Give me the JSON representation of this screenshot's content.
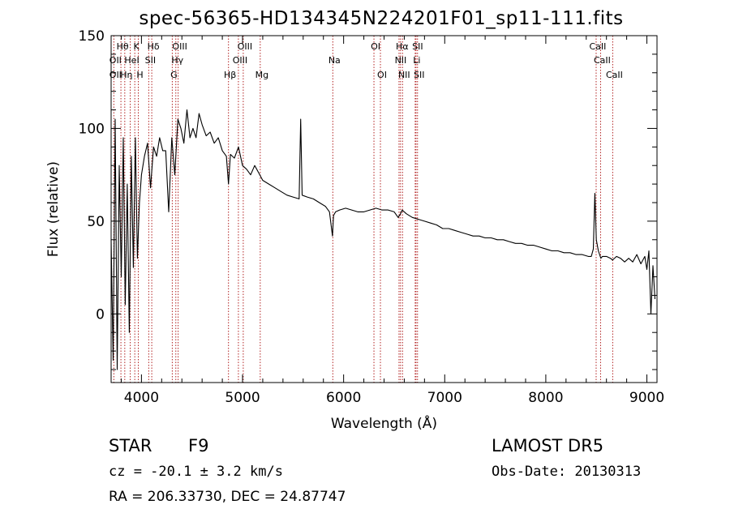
{
  "header": {
    "title": "spec-56365-HD134345N224201F01_sp11-111.fits"
  },
  "info": {
    "object_type": "STAR",
    "subclass": "F9",
    "survey": "LAMOST DR5",
    "cz": "cz = -20.1 ± 3.2 km/s",
    "obs_date": "Obs-Date: 20130313",
    "radec": "RA = 206.33730, DEC =  24.87747"
  },
  "colors": {
    "spectrum": "#000000",
    "line_markers": "#b22222",
    "axes": "#000000"
  },
  "chart_data": {
    "type": "line",
    "title": "spec-56365-HD134345N224201F01_sp11-111.fits",
    "xlabel": "Wavelength (Å)",
    "ylabel": "Flux (relative)",
    "xlim": [
      3700,
      9100
    ],
    "ylim": [
      -37,
      150
    ],
    "xticks": [
      4000,
      5000,
      6000,
      7000,
      8000,
      9000
    ],
    "yticks": [
      0,
      50,
      100,
      150
    ],
    "grid": false,
    "series": [
      {
        "name": "",
        "x": [
          3700,
          3720,
          3740,
          3760,
          3780,
          3800,
          3820,
          3840,
          3860,
          3880,
          3900,
          3920,
          3940,
          3960,
          3980,
          4000,
          4030,
          4060,
          4090,
          4120,
          4150,
          4180,
          4210,
          4240,
          4270,
          4300,
          4330,
          4360,
          4390,
          4420,
          4450,
          4480,
          4510,
          4540,
          4570,
          4600,
          4640,
          4680,
          4720,
          4760,
          4800,
          4840,
          4861,
          4880,
          4920,
          4960,
          5000,
          5040,
          5080,
          5120,
          5160,
          5200,
          5260,
          5320,
          5380,
          5440,
          5500,
          5560,
          5575,
          5590,
          5640,
          5700,
          5760,
          5820,
          5860,
          5890,
          5900,
          5920,
          5960,
          6020,
          6080,
          6140,
          6200,
          6260,
          6320,
          6380,
          6440,
          6500,
          6540,
          6563,
          6580,
          6620,
          6680,
          6740,
          6800,
          6860,
          6920,
          6980,
          7040,
          7100,
          7160,
          7220,
          7280,
          7340,
          7400,
          7460,
          7520,
          7580,
          7640,
          7700,
          7760,
          7820,
          7880,
          7940,
          8000,
          8060,
          8120,
          8180,
          8240,
          8300,
          8360,
          8420,
          8450,
          8470,
          8485,
          8500,
          8520,
          8545,
          8560,
          8600,
          8640,
          8660,
          8700,
          8740,
          8780,
          8820,
          8860,
          8900,
          8940,
          8980,
          9000,
          9020,
          9040,
          9060,
          9080
        ],
        "y": [
          40,
          -25,
          105,
          -30,
          80,
          20,
          95,
          5,
          70,
          -10,
          85,
          25,
          95,
          30,
          60,
          75,
          85,
          92,
          68,
          90,
          85,
          95,
          88,
          88,
          55,
          95,
          75,
          105,
          100,
          92,
          110,
          95,
          100,
          95,
          108,
          102,
          96,
          98,
          92,
          95,
          88,
          85,
          70,
          86,
          84,
          90,
          80,
          78,
          75,
          80,
          76,
          72,
          70,
          68,
          66,
          64,
          63,
          62,
          105,
          64,
          63,
          62,
          60,
          58,
          55,
          42,
          53,
          55,
          56,
          57,
          56,
          55,
          55,
          56,
          57,
          56,
          56,
          55,
          52,
          54,
          56,
          54,
          52,
          51,
          50,
          49,
          48,
          46,
          46,
          45,
          44,
          43,
          42,
          42,
          41,
          41,
          40,
          40,
          39,
          38,
          38,
          37,
          37,
          36,
          35,
          34,
          34,
          33,
          33,
          32,
          32,
          31,
          31,
          35,
          65,
          40,
          34,
          30,
          31,
          31,
          30,
          29,
          31,
          30,
          28,
          30,
          28,
          32,
          27,
          31,
          24,
          34,
          0,
          26,
          8
        ]
      }
    ],
    "annotations": [
      {
        "name": "OII",
        "x": 3727
      },
      {
        "name": "Hθ",
        "x": 3797
      },
      {
        "name": "Hη",
        "x": 3835
      },
      {
        "name": "HeI",
        "x": 3889
      },
      {
        "name": "K",
        "x": 3934
      },
      {
        "name": "H",
        "x": 3969
      },
      {
        "name": "SII",
        "x": 4072
      },
      {
        "name": "Hδ",
        "x": 4102
      },
      {
        "name": "OIII",
        "x": 4363
      },
      {
        "name": "Hγ",
        "x": 4340
      },
      {
        "name": "G",
        "x": 4305
      },
      {
        "name": "Hβ",
        "x": 4861
      },
      {
        "name": "OIII",
        "x": 4959
      },
      {
        "name": "OIII",
        "x": 5007
      },
      {
        "name": "Mg",
        "x": 5175
      },
      {
        "name": "Na",
        "x": 5893
      },
      {
        "name": "OI",
        "x": 6300
      },
      {
        "name": "OI",
        "x": 6364
      },
      {
        "name": "Hα",
        "x": 6563
      },
      {
        "name": "NII",
        "x": 6548
      },
      {
        "name": "NII",
        "x": 6583
      },
      {
        "name": "SII",
        "x": 6716
      },
      {
        "name": "SII",
        "x": 6731
      },
      {
        "name": "Li",
        "x": 6708
      },
      {
        "name": "CaII",
        "x": 8498
      },
      {
        "name": "CaII",
        "x": 8542
      },
      {
        "name": "CaII",
        "x": 8662
      }
    ],
    "annotation_labels": [
      {
        "text": "Hθ",
        "x": 3797,
        "row": 1
      },
      {
        "text": "K",
        "x": 3934,
        "row": 1
      },
      {
        "text": "Hδ",
        "x": 4102,
        "row": 1
      },
      {
        "text": "OIII",
        "x": 4363,
        "row": 1
      },
      {
        "text": "OIII",
        "x": 5007,
        "row": 1
      },
      {
        "text": "OI",
        "x": 6300,
        "row": 1
      },
      {
        "text": "Hα",
        "x": 6563,
        "row": 1
      },
      {
        "text": "SII",
        "x": 6716,
        "row": 1
      },
      {
        "text": "CaII",
        "x": 8498,
        "row": 1
      },
      {
        "text": "OII",
        "x": 3727,
        "row": 2
      },
      {
        "text": "HeI",
        "x": 3889,
        "row": 2
      },
      {
        "text": "SII",
        "x": 4072,
        "row": 2
      },
      {
        "text": "Hγ",
        "x": 4340,
        "row": 2
      },
      {
        "text": "OIII",
        "x": 4959,
        "row": 2
      },
      {
        "text": "Na",
        "x": 5893,
        "row": 2
      },
      {
        "text": "NII",
        "x": 6548,
        "row": 2
      },
      {
        "text": "Li",
        "x": 6708,
        "row": 2
      },
      {
        "text": "CaII",
        "x": 8542,
        "row": 2
      },
      {
        "text": "OII",
        "x": 3727,
        "row": 3
      },
      {
        "text": "Hη",
        "x": 3835,
        "row": 3
      },
      {
        "text": "H",
        "x": 3969,
        "row": 3
      },
      {
        "text": "G",
        "x": 4305,
        "row": 3
      },
      {
        "text": "Hβ",
        "x": 4861,
        "row": 3
      },
      {
        "text": "Mg",
        "x": 5175,
        "row": 3
      },
      {
        "text": "OI",
        "x": 6364,
        "row": 3
      },
      {
        "text": "NII",
        "x": 6583,
        "row": 3
      },
      {
        "text": "SII",
        "x": 6731,
        "row": 3
      },
      {
        "text": "CaII",
        "x": 8662,
        "row": 3
      }
    ]
  }
}
